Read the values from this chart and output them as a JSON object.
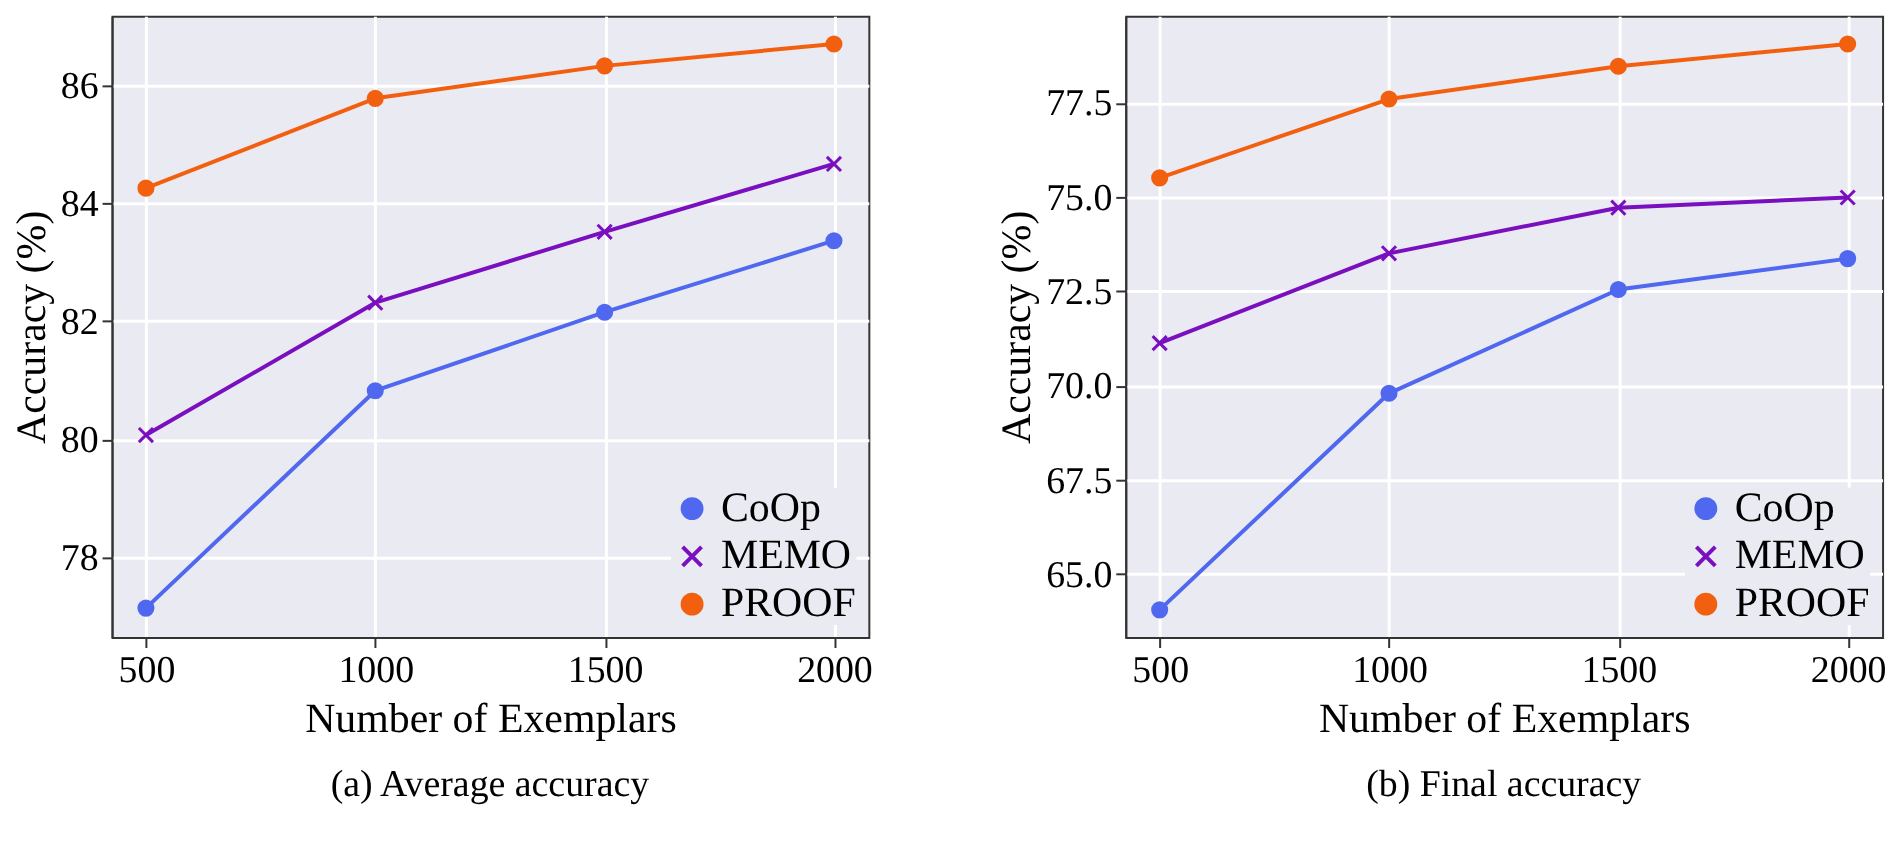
{
  "chart_data": [
    {
      "type": "line",
      "title": "(a)  Average accuracy",
      "xlabel": "Number of Exemplars",
      "ylabel": "Accuracy (%)",
      "x": [
        500,
        1000,
        1500,
        2000
      ],
      "xlim": [
        425,
        2075
      ],
      "xticks": [
        500,
        1000,
        1500,
        2000
      ],
      "ylim": [
        76.65,
        87.17
      ],
      "yticks": [
        78,
        80,
        82,
        84,
        86
      ],
      "grid": true,
      "legend": "bottom right",
      "series": [
        {
          "name": "CoOp",
          "color": "#4f68ef",
          "marker": "circle",
          "values": [
            77.14,
            80.82,
            82.15,
            83.36
          ]
        },
        {
          "name": "MEMO",
          "color": "#7a0fbf",
          "marker": "cross",
          "values": [
            80.07,
            82.31,
            83.51,
            84.66
          ]
        },
        {
          "name": "PROOF",
          "color": "#f2600f",
          "marker": "circle",
          "values": [
            84.25,
            85.77,
            86.32,
            86.69
          ]
        }
      ]
    },
    {
      "type": "line",
      "title": "(b)  Final accuracy",
      "xlabel": "Number of Exemplars",
      "ylabel": "Accuracy (%)",
      "x": [
        500,
        1000,
        1500,
        2000
      ],
      "xlim": [
        425,
        2075
      ],
      "xticks": [
        500,
        1000,
        1500,
        2000
      ],
      "ylim": [
        63.33,
        79.8
      ],
      "yticks": [
        {
          "value": 65,
          "label": "65.0"
        },
        67.5,
        {
          "value": 70,
          "label": "70.0"
        },
        72.5,
        {
          "value": 75,
          "label": "75.0"
        },
        77.5
      ],
      "grid": true,
      "legend": "bottom right",
      "series": [
        {
          "name": "CoOp",
          "color": "#4f68ef",
          "marker": "circle",
          "values": [
            64.05,
            69.79,
            72.54,
            73.36
          ]
        },
        {
          "name": "MEMO",
          "color": "#7a0fbf",
          "marker": "cross",
          "values": [
            71.12,
            73.5,
            74.71,
            74.98
          ]
        },
        {
          "name": "PROOF",
          "color": "#f2600f",
          "marker": "circle",
          "values": [
            75.5,
            77.59,
            78.46,
            79.05
          ]
        }
      ]
    }
  ]
}
